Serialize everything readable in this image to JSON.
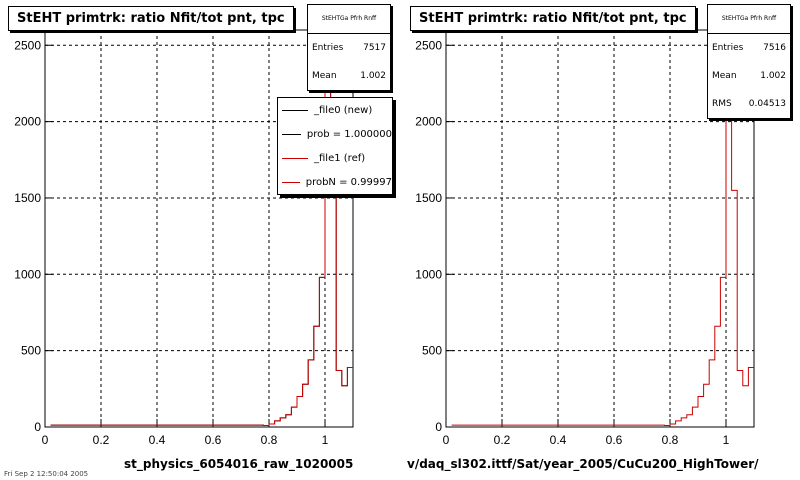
{
  "panels": [
    {
      "title": "StEHT primtrk: ratio Nfit/tot pnt, tpc",
      "stats": {
        "name": "StEHTGa Pfrh Rnff",
        "entries_label": "Entries",
        "entries": "7517",
        "mean_label": "Mean",
        "mean": "1.002"
      },
      "legend": [
        {
          "label": "_file0 (new)",
          "color": "#000000"
        },
        {
          "label": "prob = 1.000000",
          "color": "#000000"
        },
        {
          "label": "_file1 (ref)",
          "color": "#cc0000"
        },
        {
          "label": "probN = 0.99997",
          "color": "#cc0000"
        }
      ],
      "xlabel": "st_physics_6054016_raw_1020005"
    },
    {
      "title": "StEHT primtrk: ratio Nfit/tot pnt, tpc",
      "stats": {
        "name": "StEHTGa Pfrh Rnff",
        "entries_label": "Entries",
        "entries": "7516",
        "mean_label": "Mean",
        "mean": "1.002",
        "rms_label": "RMS",
        "rms": "0.04513"
      },
      "xlabel": "v/daq_sl302.ittf/Sat/year_2005/CuCu200_HighTower/"
    }
  ],
  "footer": "Fri Sep  2 12:50:04 2005",
  "chart_data": [
    {
      "type": "histogram",
      "title": "StEHT primtrk: ratio Nfit/tot pnt, tpc",
      "xlabel": "st_physics_6054016_raw_1020005",
      "xlim": [
        0,
        1.1
      ],
      "ylim": [
        0,
        2600
      ],
      "xticks": [
        0,
        0.2,
        0.4,
        0.6,
        0.8,
        1
      ],
      "yticks": [
        0,
        500,
        1000,
        1500,
        2000,
        2500
      ],
      "grid": true,
      "bin_edges": [
        0.78,
        0.8,
        0.82,
        0.84,
        0.86,
        0.88,
        0.9,
        0.92,
        0.94,
        0.96,
        0.98,
        1.0,
        1.02,
        1.04,
        1.06,
        1.08,
        1.1
      ],
      "series": [
        {
          "name": "_file0 (new)",
          "color": "#000000",
          "values": [
            10,
            20,
            40,
            60,
            80,
            130,
            200,
            280,
            440,
            660,
            980,
            2490,
            1550,
            370,
            270,
            390
          ]
        },
        {
          "name": "_file1 (ref)",
          "color": "#cc0000",
          "values": [
            10,
            20,
            40,
            60,
            80,
            130,
            200,
            280,
            440,
            660,
            980,
            2490,
            1550,
            370,
            270,
            390
          ]
        }
      ]
    },
    {
      "type": "histogram",
      "title": "StEHT primtrk: ratio Nfit/tot pnt, tpc",
      "xlabel": "v/daq_sl302.ittf/Sat/year_2005/CuCu200_HighTower/",
      "xlim": [
        0,
        1.1
      ],
      "ylim": [
        0,
        2600
      ],
      "xticks": [
        0,
        0.2,
        0.4,
        0.6,
        0.8,
        1
      ],
      "yticks": [
        0,
        500,
        1000,
        1500,
        2000,
        2500
      ],
      "grid": true,
      "bin_edges": [
        0.78,
        0.8,
        0.82,
        0.84,
        0.86,
        0.88,
        0.9,
        0.92,
        0.94,
        0.96,
        0.98,
        1.0,
        1.02,
        1.04,
        1.06,
        1.08,
        1.1
      ],
      "series": [
        {
          "name": "_file1 (ref)",
          "color": "#cc0000",
          "values": [
            10,
            20,
            40,
            60,
            80,
            130,
            200,
            280,
            440,
            660,
            980,
            2490,
            1550,
            370,
            270,
            390
          ]
        }
      ]
    }
  ]
}
